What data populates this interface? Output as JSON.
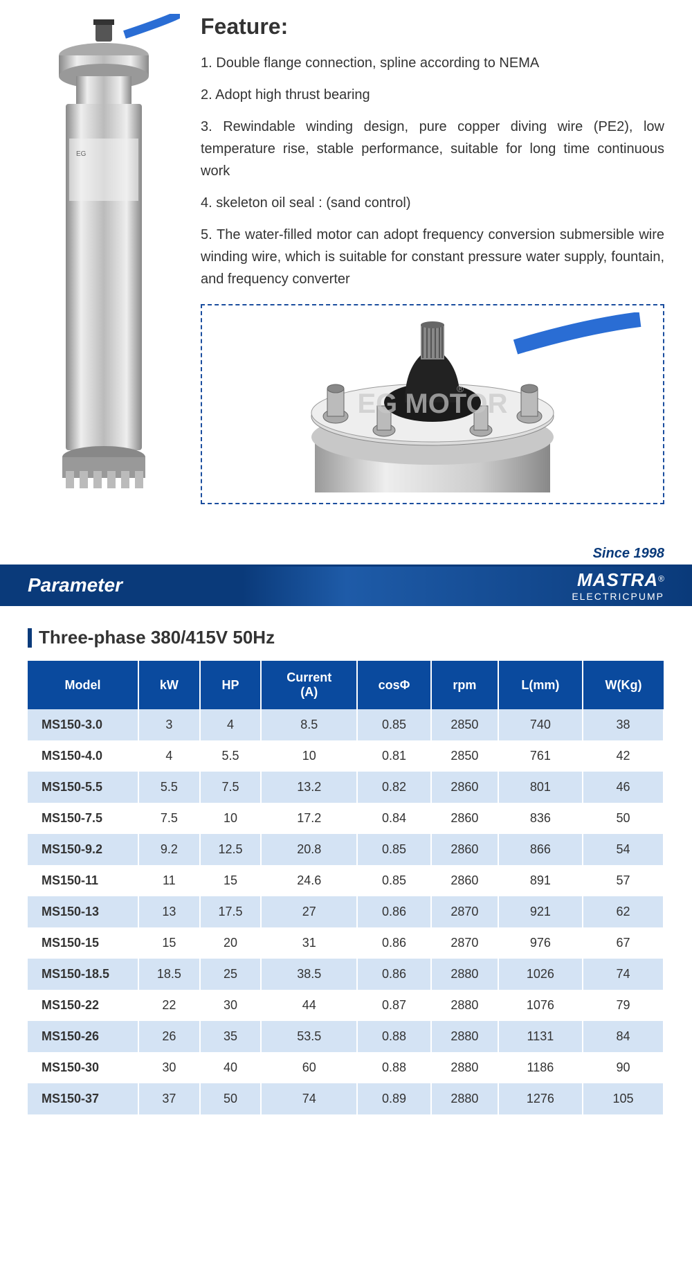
{
  "feature": {
    "title": "Feature:",
    "items": [
      "Double flange connection, spline according to NEMA",
      "Adopt high thrust bearing",
      "Rewindable winding design, pure copper diving wire (PE2), low temperature rise, stable performance, suitable for long time continuous work",
      "skeleton oil seal : (sand control)",
      "The water-filled motor can adopt frequency conversion submersible wire winding wire, which is suitable for constant pressure water supply, fountain, and frequency converter"
    ]
  },
  "banner": {
    "since": "Since 1998",
    "title": "Parameter",
    "brand": "MASTRA",
    "brand_sub": "ELECTRICPUMP"
  },
  "table": {
    "heading": "Three-phase  380/415V  50Hz",
    "columns": [
      "Model",
      "kW",
      "HP",
      "Current (A)",
      "cosΦ",
      "rpm",
      "L(mm)",
      "W(Kg)"
    ],
    "rows": [
      [
        "MS150-3.0",
        "3",
        "4",
        "8.5",
        "0.85",
        "2850",
        "740",
        "38"
      ],
      [
        "MS150-4.0",
        "4",
        "5.5",
        "10",
        "0.81",
        "2850",
        "761",
        "42"
      ],
      [
        "MS150-5.5",
        "5.5",
        "7.5",
        "13.2",
        "0.82",
        "2860",
        "801",
        "46"
      ],
      [
        "MS150-7.5",
        "7.5",
        "10",
        "17.2",
        "0.84",
        "2860",
        "836",
        "50"
      ],
      [
        "MS150-9.2",
        "9.2",
        "12.5",
        "20.8",
        "0.85",
        "2860",
        "866",
        "54"
      ],
      [
        "MS150-11",
        "11",
        "15",
        "24.6",
        "0.85",
        "2860",
        "891",
        "57"
      ],
      [
        "MS150-13",
        "13",
        "17.5",
        "27",
        "0.86",
        "2870",
        "921",
        "62"
      ],
      [
        "MS150-15",
        "15",
        "20",
        "31",
        "0.86",
        "2870",
        "976",
        "67"
      ],
      [
        "MS150-18.5",
        "18.5",
        "25",
        "38.5",
        "0.86",
        "2880",
        "1026",
        "74"
      ],
      [
        "MS150-22",
        "22",
        "30",
        "44",
        "0.87",
        "2880",
        "1076",
        "79"
      ],
      [
        "MS150-26",
        "26",
        "35",
        "53.5",
        "0.88",
        "2880",
        "1131",
        "84"
      ],
      [
        "MS150-30",
        "30",
        "40",
        "60",
        "0.88",
        "2880",
        "1186",
        "90"
      ],
      [
        "MS150-37",
        "37",
        "50",
        "74",
        "0.89",
        "2880",
        "1276",
        "105"
      ]
    ]
  },
  "colors": {
    "header_bg": "#0a4a9e",
    "row_odd": "#d4e3f4",
    "row_even": "#ffffff",
    "banner_dark": "#0a3a7a",
    "accent": "#1a4d9e"
  },
  "detail_watermark": "EG MOTOR"
}
